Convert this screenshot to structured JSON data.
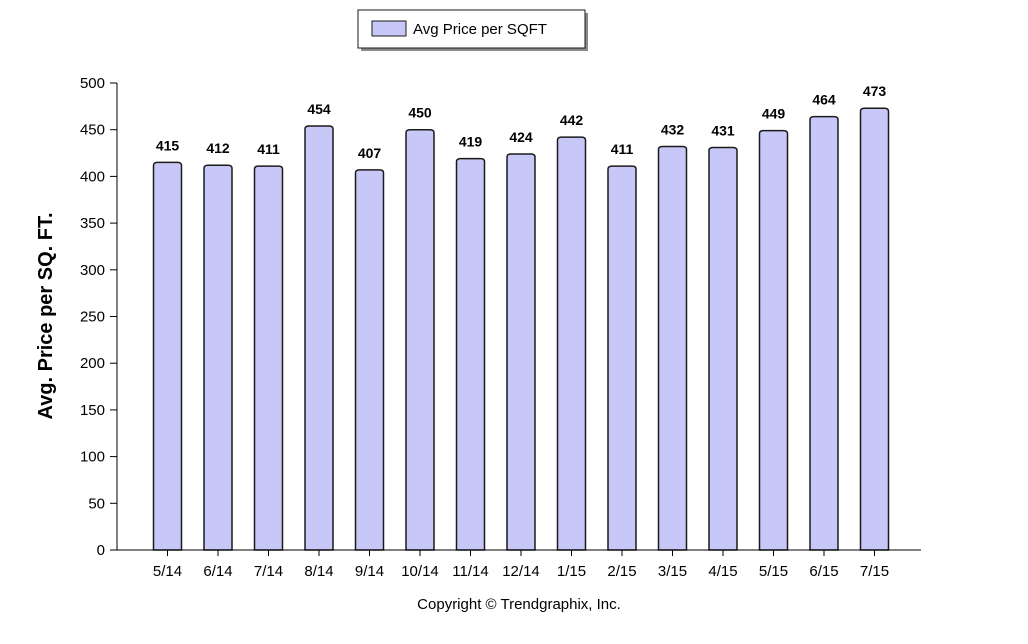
{
  "chart_data": {
    "type": "bar",
    "categories": [
      "5/14",
      "6/14",
      "7/14",
      "8/14",
      "9/14",
      "10/14",
      "11/14",
      "12/14",
      "1/15",
      "2/15",
      "3/15",
      "4/15",
      "5/15",
      "6/15",
      "7/15"
    ],
    "series": [
      {
        "name": "Avg Price per SQFT",
        "values": [
          415,
          412,
          411,
          454,
          407,
          450,
          419,
          424,
          442,
          411,
          432,
          431,
          449,
          464,
          473
        ]
      }
    ],
    "ylabel": "Avg. Price per SQ. FT.",
    "xlabel": "",
    "ylim": [
      0,
      500
    ],
    "yticks": [
      0,
      50,
      100,
      150,
      200,
      250,
      300,
      350,
      400,
      450,
      500
    ],
    "grid": false,
    "legend_position": "top-center",
    "bar_color": "#c8c8f8",
    "bar_stroke": "#1a1a1a",
    "copyright": "Copyright © Trendgraphix, Inc."
  }
}
